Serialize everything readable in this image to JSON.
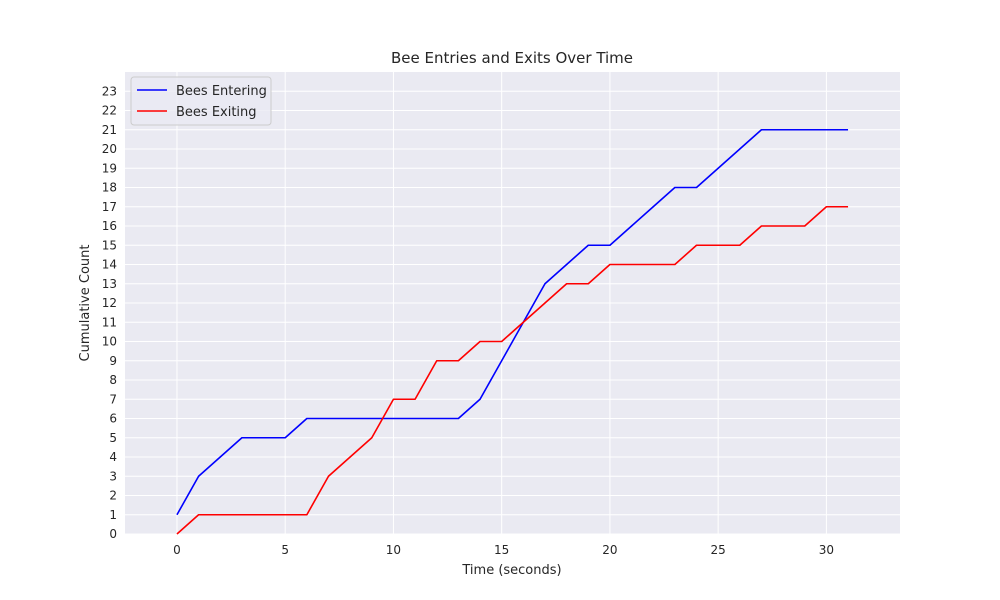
{
  "chart_data": {
    "type": "line",
    "title": "Bee Entries and Exits Over Time",
    "xlabel": "Time (seconds)",
    "ylabel": "Cumulative Count",
    "xlim": [
      -2.4,
      33.4
    ],
    "ylim": [
      0,
      24
    ],
    "x_ticks": [
      0,
      5,
      10,
      15,
      20,
      25,
      30
    ],
    "y_ticks": [
      0,
      1,
      2,
      3,
      4,
      5,
      6,
      7,
      8,
      9,
      10,
      11,
      12,
      13,
      14,
      15,
      16,
      17,
      18,
      19,
      20,
      21,
      22,
      23
    ],
    "grid": true,
    "legend_position": "top-left",
    "x": [
      0,
      1,
      2,
      3,
      4,
      5,
      6,
      7,
      8,
      9,
      10,
      11,
      12,
      13,
      14,
      15,
      16,
      17,
      18,
      19,
      20,
      21,
      22,
      23,
      24,
      25,
      26,
      27,
      28,
      29,
      30,
      31
    ],
    "series": [
      {
        "name": "Bees Entering",
        "color": "#0000ff",
        "values": [
          1,
          3,
          4,
          5,
          5,
          5,
          6,
          6,
          6,
          6,
          6,
          6,
          6,
          6,
          7,
          9,
          11,
          13,
          14,
          15,
          15,
          16,
          17,
          18,
          18,
          19,
          20,
          21,
          21,
          21,
          21,
          21
        ]
      },
      {
        "name": "Bees Exiting",
        "color": "#ff0000",
        "values": [
          0,
          1,
          1,
          1,
          1,
          1,
          1,
          3,
          4,
          5,
          7,
          7,
          9,
          9,
          10,
          10,
          11,
          12,
          13,
          13,
          14,
          14,
          14,
          14,
          15,
          15,
          15,
          16,
          16,
          16,
          17,
          17
        ]
      }
    ]
  }
}
